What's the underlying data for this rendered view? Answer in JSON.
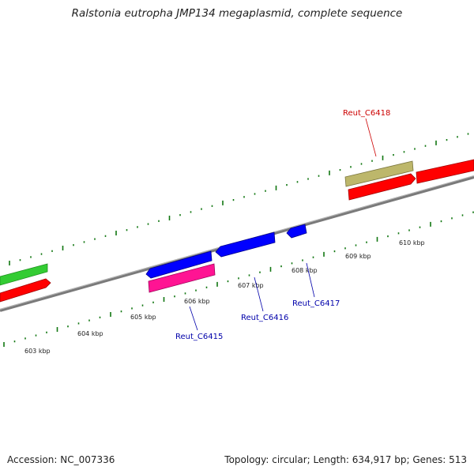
{
  "title": "Ralstonia eutropha JMP134 megaplasmid, complete sequence",
  "footer": {
    "accession": "Accession: NC_007336",
    "summary": "Topology: circular; Length: 634,917 bp; Genes: 513"
  },
  "ruler": {
    "tick_labels": [
      "603 kbp",
      "604 kbp",
      "605 kbp",
      "606 kbp",
      "607 kbp",
      "608 kbp",
      "609 kbp",
      "610 kbp"
    ]
  },
  "gene_labels": [
    {
      "name": "Reut_C6418",
      "color": "#cc0000"
    },
    {
      "name": "Reut_C6415",
      "color": "#0000aa"
    },
    {
      "name": "Reut_C6416",
      "color": "#0000aa"
    },
    {
      "name": "Reut_C6417",
      "color": "#0000aa"
    }
  ],
  "colors": {
    "backbone": "#808080",
    "tick": "#117711",
    "forward_gene": "#ff0000",
    "reverse_gene": "#0000ff",
    "rna_gene": "#ff1493",
    "green_gene": "#33cc33",
    "khaki_gene": "#bdb76b"
  }
}
